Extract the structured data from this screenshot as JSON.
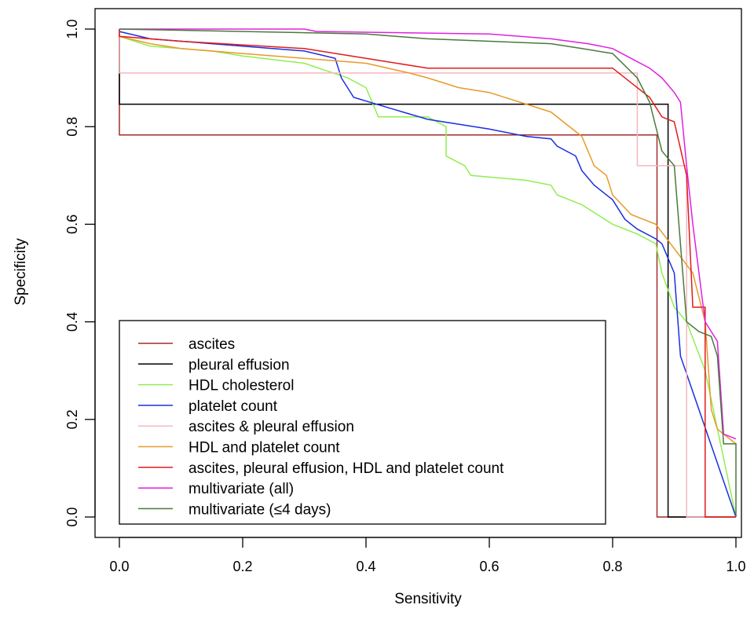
{
  "chart_data": {
    "type": "line",
    "title": "",
    "xlabel": "Sensitivity",
    "ylabel": "Specificity",
    "xlim": [
      0.0,
      1.0
    ],
    "ylim": [
      0.0,
      1.0
    ],
    "xticks": [
      "0.0",
      "0.2",
      "0.4",
      "0.6",
      "0.8",
      "1.0"
    ],
    "yticks": [
      "0.0",
      "0.2",
      "0.4",
      "0.6",
      "0.8",
      "1.0"
    ],
    "grid": false,
    "legend_position": "bottom-left",
    "series": [
      {
        "name": "ascites",
        "color": "#a52a2a",
        "points": [
          [
            0,
            1
          ],
          [
            0,
            0.783
          ],
          [
            0.872,
            0.783
          ],
          [
            0.872,
            0
          ],
          [
            1,
            0
          ]
        ]
      },
      {
        "name": "pleural effusion",
        "color": "#000000",
        "points": [
          [
            0,
            1
          ],
          [
            0,
            0.846
          ],
          [
            0.89,
            0.846
          ],
          [
            0.89,
            0
          ],
          [
            1,
            0
          ]
        ]
      },
      {
        "name": "HDL cholesterol",
        "color": "#90ee50",
        "points": [
          [
            0,
            1
          ],
          [
            0,
            0.985
          ],
          [
            0.05,
            0.965
          ],
          [
            0.15,
            0.955
          ],
          [
            0.2,
            0.945
          ],
          [
            0.3,
            0.93
          ],
          [
            0.37,
            0.9
          ],
          [
            0.4,
            0.88
          ],
          [
            0.42,
            0.82
          ],
          [
            0.5,
            0.82
          ],
          [
            0.53,
            0.8
          ],
          [
            0.53,
            0.74
          ],
          [
            0.56,
            0.72
          ],
          [
            0.57,
            0.7
          ],
          [
            0.66,
            0.69
          ],
          [
            0.7,
            0.68
          ],
          [
            0.71,
            0.66
          ],
          [
            0.75,
            0.64
          ],
          [
            0.8,
            0.6
          ],
          [
            0.84,
            0.58
          ],
          [
            0.87,
            0.56
          ],
          [
            0.88,
            0.5
          ],
          [
            0.9,
            0.43
          ],
          [
            0.92,
            0.4
          ],
          [
            0.95,
            0.3
          ],
          [
            1,
            0
          ]
        ]
      },
      {
        "name": "platelet count",
        "color": "#1a2fe0",
        "points": [
          [
            0,
            1
          ],
          [
            0,
            0.995
          ],
          [
            0.05,
            0.98
          ],
          [
            0.1,
            0.975
          ],
          [
            0.2,
            0.965
          ],
          [
            0.3,
            0.955
          ],
          [
            0.35,
            0.94
          ],
          [
            0.36,
            0.9
          ],
          [
            0.38,
            0.86
          ],
          [
            0.42,
            0.845
          ],
          [
            0.46,
            0.83
          ],
          [
            0.5,
            0.815
          ],
          [
            0.6,
            0.795
          ],
          [
            0.66,
            0.78
          ],
          [
            0.7,
            0.775
          ],
          [
            0.71,
            0.76
          ],
          [
            0.74,
            0.74
          ],
          [
            0.75,
            0.71
          ],
          [
            0.77,
            0.68
          ],
          [
            0.8,
            0.65
          ],
          [
            0.82,
            0.61
          ],
          [
            0.84,
            0.59
          ],
          [
            0.87,
            0.57
          ],
          [
            0.88,
            0.56
          ],
          [
            0.9,
            0.5
          ],
          [
            0.91,
            0.33
          ],
          [
            1,
            0
          ]
        ]
      },
      {
        "name": "ascites & pleural effusion",
        "color": "#f4b8c0",
        "points": [
          [
            0,
            1
          ],
          [
            0,
            0.91
          ],
          [
            0.84,
            0.91
          ],
          [
            0.84,
            0.72
          ],
          [
            0.92,
            0.72
          ],
          [
            0.92,
            0
          ],
          [
            1,
            0
          ]
        ]
      },
      {
        "name": "HDL and platelet count",
        "color": "#e89a2a",
        "points": [
          [
            0,
            1
          ],
          [
            0,
            0.985
          ],
          [
            0.05,
            0.97
          ],
          [
            0.1,
            0.96
          ],
          [
            0.2,
            0.95
          ],
          [
            0.3,
            0.94
          ],
          [
            0.4,
            0.93
          ],
          [
            0.47,
            0.91
          ],
          [
            0.5,
            0.9
          ],
          [
            0.55,
            0.88
          ],
          [
            0.6,
            0.87
          ],
          [
            0.65,
            0.85
          ],
          [
            0.7,
            0.83
          ],
          [
            0.72,
            0.81
          ],
          [
            0.75,
            0.78
          ],
          [
            0.77,
            0.72
          ],
          [
            0.79,
            0.7
          ],
          [
            0.8,
            0.66
          ],
          [
            0.83,
            0.62
          ],
          [
            0.87,
            0.6
          ],
          [
            0.9,
            0.55
          ],
          [
            0.93,
            0.5
          ],
          [
            0.95,
            0.4
          ],
          [
            0.96,
            0.22
          ],
          [
            0.97,
            0.18
          ],
          [
            1,
            0.15
          ]
        ]
      },
      {
        "name": "ascites, pleural effusion, HDL and platelet count",
        "color": "#e11b1b",
        "points": [
          [
            0,
            1
          ],
          [
            0,
            0.985
          ],
          [
            0.1,
            0.975
          ],
          [
            0.3,
            0.96
          ],
          [
            0.4,
            0.94
          ],
          [
            0.5,
            0.92
          ],
          [
            0.8,
            0.92
          ],
          [
            0.83,
            0.89
          ],
          [
            0.86,
            0.86
          ],
          [
            0.87,
            0.84
          ],
          [
            0.88,
            0.82
          ],
          [
            0.9,
            0.81
          ],
          [
            0.92,
            0.7
          ],
          [
            0.93,
            0.43
          ],
          [
            0.95,
            0.43
          ],
          [
            0.95,
            0
          ],
          [
            1,
            0
          ]
        ]
      },
      {
        "name": "multivariate (all)",
        "color": "#e020e0",
        "points": [
          [
            0,
            1
          ],
          [
            0,
            1
          ],
          [
            0.3,
            1
          ],
          [
            0.32,
            0.995
          ],
          [
            0.6,
            0.99
          ],
          [
            0.7,
            0.98
          ],
          [
            0.76,
            0.97
          ],
          [
            0.8,
            0.96
          ],
          [
            0.83,
            0.94
          ],
          [
            0.86,
            0.92
          ],
          [
            0.88,
            0.9
          ],
          [
            0.9,
            0.87
          ],
          [
            0.91,
            0.85
          ],
          [
            0.92,
            0.72
          ],
          [
            0.93,
            0.6
          ],
          [
            0.95,
            0.4
          ],
          [
            0.97,
            0.36
          ],
          [
            0.98,
            0.17
          ],
          [
            1,
            0.16
          ]
        ]
      },
      {
        "name": "multivariate (≤4 days)",
        "color": "#4a7a3a",
        "points": [
          [
            0,
            1
          ],
          [
            0,
            1
          ],
          [
            0.4,
            0.99
          ],
          [
            0.5,
            0.98
          ],
          [
            0.7,
            0.97
          ],
          [
            0.75,
            0.96
          ],
          [
            0.8,
            0.95
          ],
          [
            0.84,
            0.9
          ],
          [
            0.86,
            0.85
          ],
          [
            0.88,
            0.75
          ],
          [
            0.9,
            0.72
          ],
          [
            0.92,
            0.4
          ],
          [
            0.94,
            0.38
          ],
          [
            0.96,
            0.37
          ],
          [
            0.97,
            0.33
          ],
          [
            0.98,
            0.15
          ],
          [
            1,
            0.15
          ],
          [
            1,
            0
          ]
        ]
      }
    ]
  }
}
